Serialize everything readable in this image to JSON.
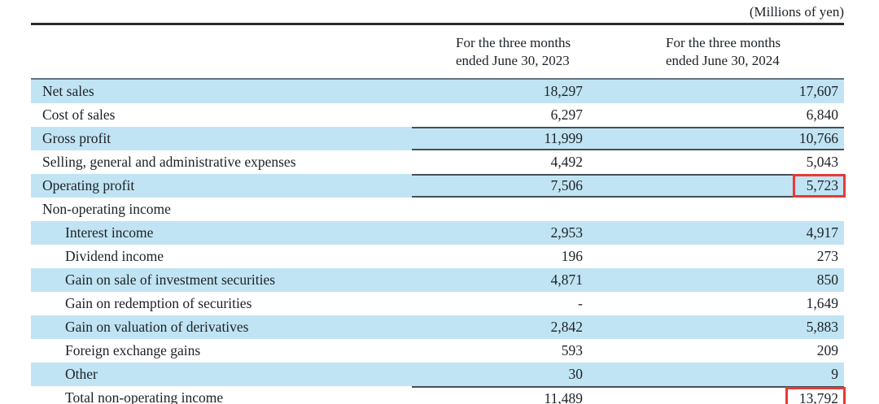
{
  "document": {
    "unit_label": "(Millions of yen)",
    "columns": [
      {
        "line1": "For the three months",
        "line2": "ended June 30, 2023"
      },
      {
        "line1": "For the three months",
        "line2": "ended June 30, 2024"
      }
    ],
    "rows": [
      {
        "label": "Net sales",
        "y2023": "18,297",
        "y2024": "17,607"
      },
      {
        "label": "Cost of sales",
        "y2023": "6,297",
        "y2024": "6,840"
      },
      {
        "label": "Gross profit",
        "y2023": "11,999",
        "y2024": "10,766"
      },
      {
        "label": "Selling, general and administrative expenses",
        "y2023": "4,492",
        "y2024": "5,043"
      },
      {
        "label": "Operating profit",
        "y2023": "7,506",
        "y2024": "5,723"
      },
      {
        "label": "Non-operating income",
        "y2023": "",
        "y2024": ""
      },
      {
        "label": "Interest income",
        "y2023": "2,953",
        "y2024": "4,917"
      },
      {
        "label": "Dividend income",
        "y2023": "196",
        "y2024": "273"
      },
      {
        "label": "Gain on sale of investment securities",
        "y2023": "4,871",
        "y2024": "850"
      },
      {
        "label": "Gain on redemption of securities",
        "y2023": "-",
        "y2024": "1,649"
      },
      {
        "label": "Gain on valuation of derivatives",
        "y2023": "2,842",
        "y2024": "5,883"
      },
      {
        "label": "Foreign exchange gains",
        "y2023": "593",
        "y2024": "209"
      },
      {
        "label": "Other",
        "y2023": "30",
        "y2024": "9"
      },
      {
        "label": "Total non-operating income",
        "y2023": "11,489",
        "y2024": "13,792"
      }
    ],
    "colors": {
      "row_shade": "#c1e4f4",
      "highlight_box": "#e73b34",
      "rule_dark": "#2b2b2b",
      "rule_subtotal": "#454f57"
    }
  }
}
